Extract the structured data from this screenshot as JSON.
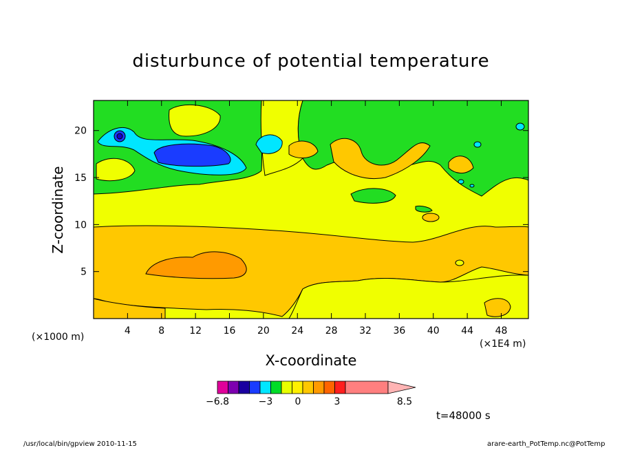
{
  "chart_data": {
    "type": "heatmap",
    "title": "disturbunce of potential temperature",
    "xlabel": "X-coordinate",
    "ylabel": "Z-coordinate",
    "x_unit": "(×1E4 m)",
    "y_unit": "(×1000 m)",
    "x_ticks": [
      4,
      8,
      12,
      16,
      20,
      24,
      28,
      32,
      36,
      40,
      44,
      48
    ],
    "y_ticks": [
      5,
      10,
      15,
      20
    ],
    "xlim": [
      0,
      51.2
    ],
    "ylim": [
      0,
      23.2
    ],
    "time_label": "t=48000 s",
    "colorbar": {
      "tick_labels": [
        "−6.8",
        "−3",
        "0",
        "3",
        "8.5"
      ],
      "min": -6.8,
      "max": 8.5,
      "colors": [
        "#e0009a",
        "#7d00b0",
        "#1a00a0",
        "#1a3cff",
        "#00e6ff",
        "#00dc28",
        "#e8ff00",
        "#fff000",
        "#ffc800",
        "#ff9a00",
        "#ff6400",
        "#ff1e1e",
        "#ff7f7f",
        "#ffb4b4"
      ]
    },
    "regions": [
      {
        "level": "0 to 1",
        "color": "#f0ff00"
      },
      {
        "level": "1 to 2",
        "color": "#ffc800"
      },
      {
        "level": "2 to 3",
        "color": "#ff9a00"
      },
      {
        "level": "-1 to 0",
        "color": "#22dd22"
      },
      {
        "level": "-2 to -1",
        "color": "#00e6ff"
      },
      {
        "level": "-3 to -2",
        "color": "#1a3cff"
      },
      {
        "level": "-4 to -3",
        "color": "#1a00c8"
      }
    ]
  },
  "footer": {
    "left": "/usr/local/bin/gpview  2010-11-15",
    "right": "arare-earth_PotTemp.nc@PotTemp"
  }
}
